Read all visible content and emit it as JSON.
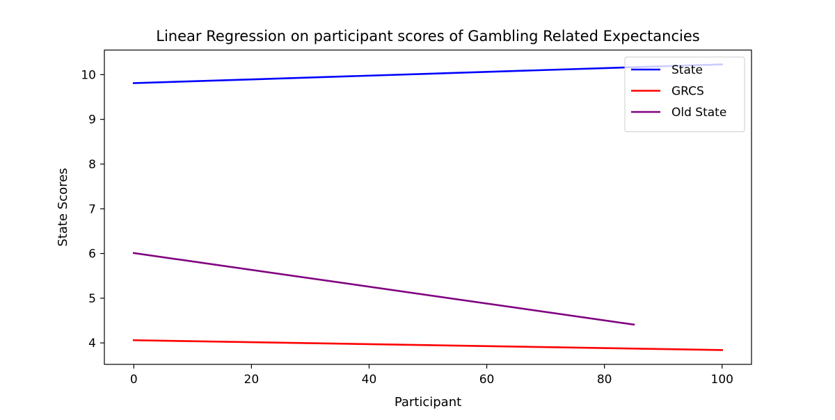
{
  "chart_data": {
    "type": "line",
    "title": "Linear Regression on participant scores of Gambling Related Expectancies",
    "xlabel": "Participant",
    "ylabel": "State Scores",
    "xlim": [
      -5,
      105
    ],
    "ylim": [
      3.52,
      10.55
    ],
    "xticks": [
      0,
      20,
      40,
      60,
      80,
      100
    ],
    "yticks": [
      4,
      5,
      6,
      7,
      8,
      9,
      10
    ],
    "grid": false,
    "legend_position": "top-right",
    "series": [
      {
        "name": "State",
        "color": "#0000ff",
        "x": [
          0,
          100
        ],
        "y": [
          9.81,
          10.23
        ]
      },
      {
        "name": "GRCS",
        "color": "#ff0000",
        "x": [
          0,
          100
        ],
        "y": [
          4.06,
          3.84
        ]
      },
      {
        "name": "Old State",
        "color": "#800080",
        "x": [
          0,
          85
        ],
        "y": [
          6.01,
          4.41
        ]
      }
    ]
  }
}
